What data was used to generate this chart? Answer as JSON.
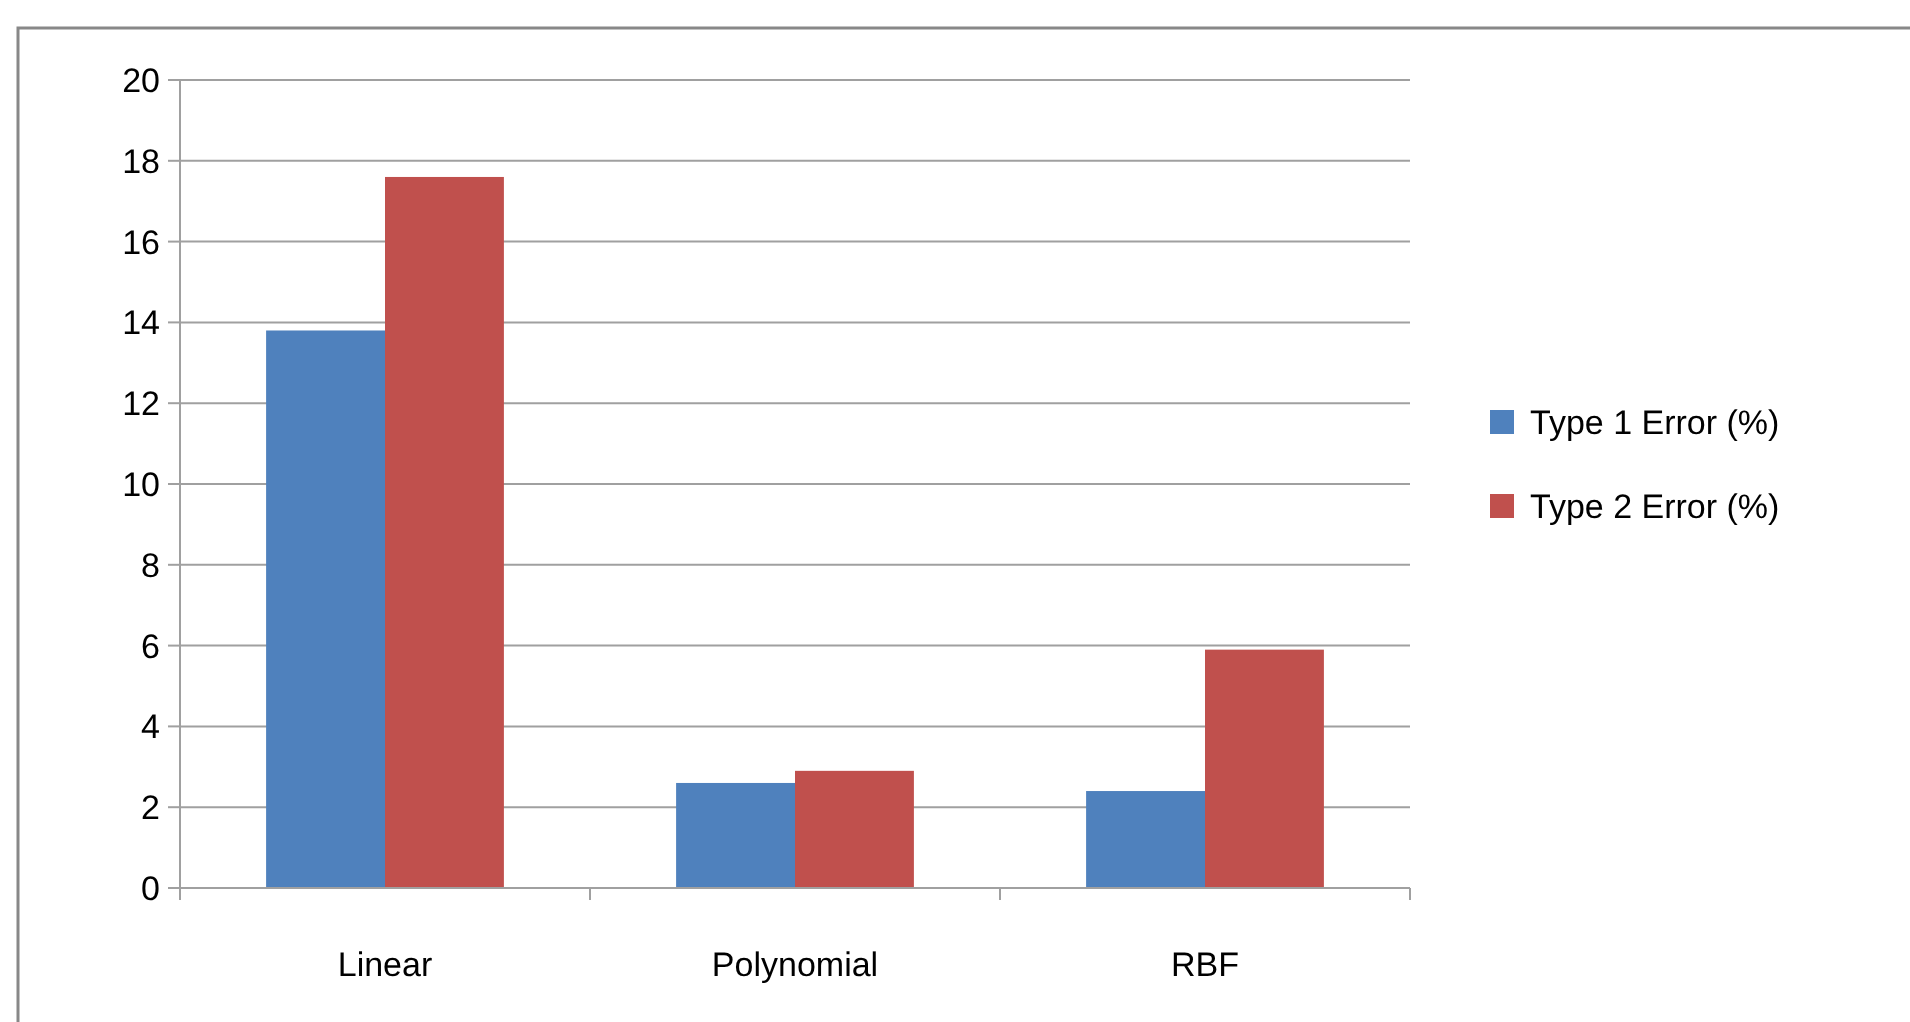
{
  "chart_data": {
    "type": "bar",
    "categories": [
      "Linear",
      "Polynomial",
      "RBF"
    ],
    "series": [
      {
        "name": "Type 1 Error (%)",
        "color": "#4f81bd",
        "values": [
          13.8,
          2.6,
          2.4
        ]
      },
      {
        "name": "Type 2 Error (%)",
        "color": "#c0504d",
        "values": [
          17.6,
          2.9,
          5.9
        ]
      }
    ],
    "ylim": [
      0,
      20
    ],
    "yticks": [
      0,
      2,
      4,
      6,
      8,
      10,
      12,
      14,
      16,
      18,
      20
    ],
    "grid": "y",
    "legend": "right"
  }
}
